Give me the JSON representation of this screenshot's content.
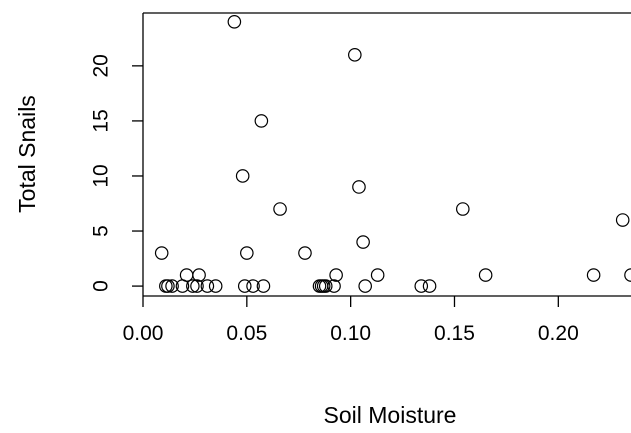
{
  "chart_data": {
    "type": "scatter",
    "title": "",
    "xlabel": "Soil Moisture",
    "ylabel": "Total Snails",
    "xlim": [
      0.0,
      0.235
    ],
    "ylim": [
      -0.9,
      24.8
    ],
    "x_ticks": [
      0.0,
      0.05,
      0.1,
      0.15,
      0.2
    ],
    "x_tick_labels": [
      "0.00",
      "0.05",
      "0.10",
      "0.15",
      "0.20"
    ],
    "y_ticks": [
      0,
      5,
      10,
      15,
      20
    ],
    "y_tick_labels": [
      "0",
      "5",
      "10",
      "15",
      "20"
    ],
    "grid": false,
    "legend": "none",
    "marker": "open-circle",
    "marker_color": "#000000",
    "points": [
      {
        "x": 0.009,
        "y": 3
      },
      {
        "x": 0.011,
        "y": 0
      },
      {
        "x": 0.012,
        "y": 0
      },
      {
        "x": 0.014,
        "y": 0
      },
      {
        "x": 0.019,
        "y": 0
      },
      {
        "x": 0.021,
        "y": 1
      },
      {
        "x": 0.024,
        "y": 0
      },
      {
        "x": 0.026,
        "y": 0
      },
      {
        "x": 0.027,
        "y": 1
      },
      {
        "x": 0.031,
        "y": 0
      },
      {
        "x": 0.035,
        "y": 0
      },
      {
        "x": 0.044,
        "y": 24
      },
      {
        "x": 0.048,
        "y": 10
      },
      {
        "x": 0.049,
        "y": 0
      },
      {
        "x": 0.05,
        "y": 3
      },
      {
        "x": 0.053,
        "y": 0
      },
      {
        "x": 0.057,
        "y": 15
      },
      {
        "x": 0.058,
        "y": 0
      },
      {
        "x": 0.066,
        "y": 7
      },
      {
        "x": 0.078,
        "y": 3
      },
      {
        "x": 0.085,
        "y": 0
      },
      {
        "x": 0.086,
        "y": 0
      },
      {
        "x": 0.087,
        "y": 0
      },
      {
        "x": 0.088,
        "y": 0
      },
      {
        "x": 0.092,
        "y": 0
      },
      {
        "x": 0.093,
        "y": 1
      },
      {
        "x": 0.102,
        "y": 21
      },
      {
        "x": 0.104,
        "y": 9
      },
      {
        "x": 0.106,
        "y": 4
      },
      {
        "x": 0.107,
        "y": 0
      },
      {
        "x": 0.113,
        "y": 1
      },
      {
        "x": 0.134,
        "y": 0
      },
      {
        "x": 0.138,
        "y": 0
      },
      {
        "x": 0.154,
        "y": 7
      },
      {
        "x": 0.165,
        "y": 1
      },
      {
        "x": 0.217,
        "y": 1
      },
      {
        "x": 0.231,
        "y": 6
      },
      {
        "x": 0.235,
        "y": 1
      }
    ]
  }
}
